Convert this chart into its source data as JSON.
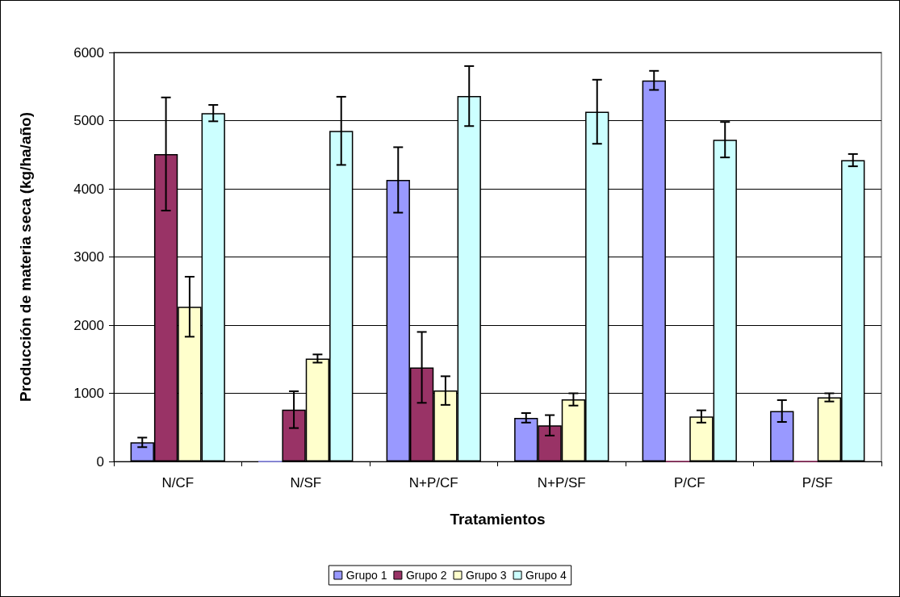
{
  "chart_data": {
    "type": "bar",
    "xlabel": "Tratamientos",
    "ylabel": "Producción de materia seca (kg/ha/año)",
    "categories": [
      "N/CF",
      "N/SF",
      "N+P/CF",
      "N+P/SF",
      "P/CF",
      "P/SF"
    ],
    "series": [
      {
        "name": "Grupo 1",
        "color": "#9999ff",
        "values": [
          280,
          0,
          4130,
          640,
          5590,
          740
        ],
        "errors": [
          70,
          null,
          480,
          70,
          140,
          160
        ]
      },
      {
        "name": "Grupo 2",
        "color": "#993366",
        "values": [
          4510,
          760,
          1380,
          530,
          0,
          0
        ],
        "errors": [
          830,
          270,
          520,
          150,
          null,
          null
        ]
      },
      {
        "name": "Grupo 3",
        "color": "#ffffcc",
        "values": [
          2270,
          1510,
          1040,
          910,
          660,
          940
        ],
        "errors": [
          440,
          60,
          210,
          90,
          90,
          60
        ]
      },
      {
        "name": "Grupo 4",
        "color": "#ccffff",
        "values": [
          5110,
          4850,
          5360,
          5130,
          4720,
          4420
        ],
        "errors": [
          120,
          500,
          440,
          470,
          260,
          90
        ]
      }
    ],
    "ylim": [
      0,
      6000
    ],
    "yticks": [
      0,
      1000,
      2000,
      3000,
      4000,
      5000,
      6000
    ],
    "grid": "y",
    "legend": "bottom"
  }
}
